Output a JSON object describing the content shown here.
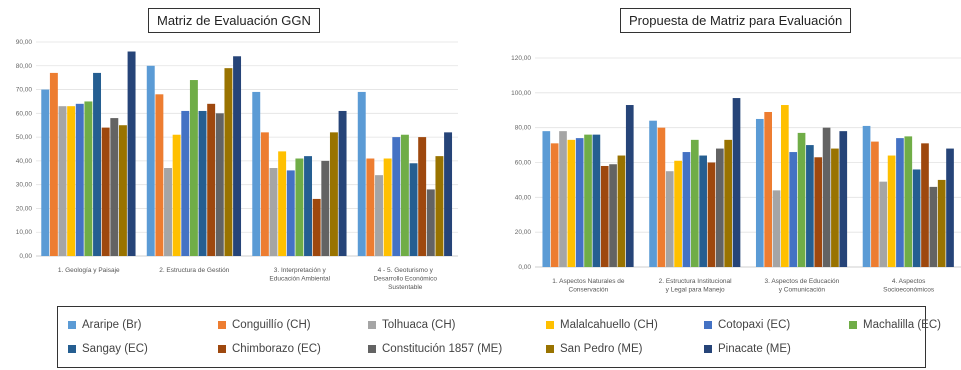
{
  "legend": [
    {
      "name": "Araripe (Br)",
      "color": "#5B9BD5"
    },
    {
      "name": "Conguillío (CH)",
      "color": "#ED7D31"
    },
    {
      "name": "Tolhuaca (CH)",
      "color": "#A5A5A5"
    },
    {
      "name": "Malalcahuello (CH)",
      "color": "#FFC000"
    },
    {
      "name": "Cotopaxi (EC)",
      "color": "#4472C4"
    },
    {
      "name": "Machalilla (EC)",
      "color": "#70AD47"
    },
    {
      "name": "Sangay (EC)",
      "color": "#255E91"
    },
    {
      "name": "Chimborazo (EC)",
      "color": "#9E480E"
    },
    {
      "name": "Constitución 1857 (ME)",
      "color": "#636363"
    },
    {
      "name": "San Pedro (ME)",
      "color": "#997300"
    },
    {
      "name": "Pinacate (ME)",
      "color": "#264478"
    }
  ],
  "chart_data": [
    {
      "type": "bar",
      "title": "Matriz de Evaluación GGN",
      "yticks": [
        "0,00",
        "10,00",
        "20,00",
        "30,00",
        "40,00",
        "50,00",
        "60,00",
        "70,00",
        "80,00",
        "90,00"
      ],
      "ylim": [
        0,
        90
      ],
      "grid": true,
      "categories": [
        [
          "1. Geología y Paisaje"
        ],
        [
          "2. Estructura de Gestión"
        ],
        [
          "3. Interpretación y",
          "Educación Ambiental"
        ],
        [
          "4 - 5. Geoturismo y",
          "Desarrollo Económico",
          "Sustentable"
        ]
      ],
      "series": [
        {
          "name": "Araripe (Br)",
          "values": [
            70,
            80,
            69,
            69
          ]
        },
        {
          "name": "Conguillío (CH)",
          "values": [
            77,
            68,
            52,
            41
          ]
        },
        {
          "name": "Tolhuaca (CH)",
          "values": [
            63,
            37,
            37,
            34
          ]
        },
        {
          "name": "Malalcahuello (CH)",
          "values": [
            63,
            51,
            44,
            41
          ]
        },
        {
          "name": "Cotopaxi (EC)",
          "values": [
            64,
            61,
            36,
            50
          ]
        },
        {
          "name": "Machalilla (EC)",
          "values": [
            65,
            74,
            41,
            51
          ]
        },
        {
          "name": "Sangay (EC)",
          "values": [
            77,
            61,
            42,
            39
          ]
        },
        {
          "name": "Chimborazo (EC)",
          "values": [
            54,
            64,
            24,
            50
          ]
        },
        {
          "name": "Constitución 1857 (ME)",
          "values": [
            58,
            60,
            40,
            28
          ]
        },
        {
          "name": "San Pedro (ME)",
          "values": [
            55,
            79,
            52,
            42
          ]
        },
        {
          "name": "Pinacate (ME)",
          "values": [
            86,
            84,
            61,
            52
          ]
        }
      ]
    },
    {
      "type": "bar",
      "title": "Propuesta de Matriz para Evaluación",
      "yticks": [
        "0,00",
        "20,00",
        "40,00",
        "60,00",
        "80,00",
        "100,00",
        "120,00"
      ],
      "ylim": [
        0,
        120
      ],
      "grid": true,
      "categories": [
        [
          "1. Aspectos Naturales de",
          "Conservación"
        ],
        [
          "2. Estructura Institucional",
          "y Legal para Manejo"
        ],
        [
          "3. Aspectos de Educación",
          "y Comunicación"
        ],
        [
          "4. Aspectos",
          "Socioeconómicos"
        ]
      ],
      "series": [
        {
          "name": "Araripe (Br)",
          "values": [
            78,
            84,
            85,
            81
          ]
        },
        {
          "name": "Conguillío (CH)",
          "values": [
            71,
            80,
            89,
            72
          ]
        },
        {
          "name": "Tolhuaca (CH)",
          "values": [
            78,
            55,
            44,
            49
          ]
        },
        {
          "name": "Malalcahuello (CH)",
          "values": [
            73,
            61,
            93,
            64
          ]
        },
        {
          "name": "Cotopaxi (EC)",
          "values": [
            74,
            66,
            66,
            74
          ]
        },
        {
          "name": "Machalilla (EC)",
          "values": [
            76,
            73,
            77,
            75
          ]
        },
        {
          "name": "Sangay (EC)",
          "values": [
            76,
            64,
            70,
            56
          ]
        },
        {
          "name": "Chimborazo (EC)",
          "values": [
            58,
            60,
            63,
            71
          ]
        },
        {
          "name": "Constitución 1857 (ME)",
          "values": [
            59,
            68,
            80,
            46
          ]
        },
        {
          "name": "San Pedro (ME)",
          "values": [
            64,
            73,
            68,
            50
          ]
        },
        {
          "name": "Pinacate (ME)",
          "values": [
            93,
            97,
            78,
            68
          ]
        }
      ]
    }
  ]
}
